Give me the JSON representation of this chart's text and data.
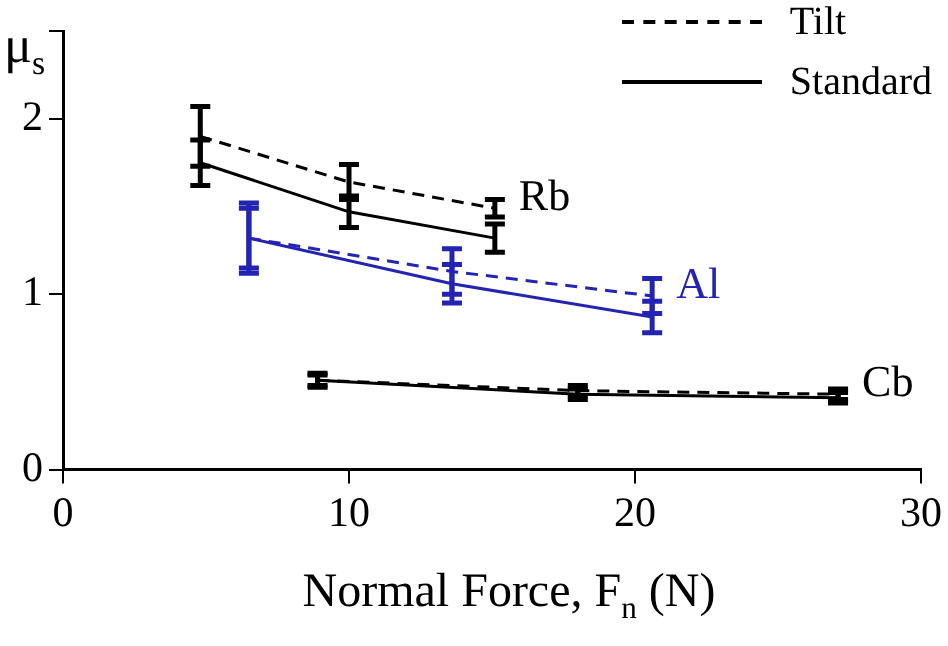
{
  "chart_data": {
    "type": "line",
    "xlabel": "Normal Force, F$_{n}$ (N)",
    "ylabel": "μ$_{s}$",
    "xlim": [
      0,
      30
    ],
    "xticks": [
      0,
      10,
      20,
      30
    ],
    "ylim": [
      0,
      2.5
    ],
    "yticks": [
      0,
      1,
      2,
      {
        "value": 2.5,
        "label": null
      }
    ],
    "grid": false,
    "legend": "top right",
    "series": [
      {
        "name": "Tilt",
        "color": "#000000",
        "line_style": "dashed",
        "x": [
          4.8,
          10,
          15.1
        ],
        "values": [
          1.9,
          1.64,
          1.49
        ],
        "errors": [
          0.17,
          0.1,
          0.05
        ]
      },
      {
        "name": "Standard",
        "color": "#000000",
        "line_style": "solid",
        "x": [
          4.8,
          10,
          15.1
        ],
        "values": [
          1.75,
          1.47,
          1.32
        ],
        "errors": [
          0.13,
          0.09,
          0.08
        ]
      },
      {
        "color": "#2323b4",
        "line_style": "dashed",
        "x": [
          6.5,
          13.6,
          20.6
        ],
        "values": [
          1.32,
          1.13,
          0.99
        ],
        "errors": [
          0.17,
          0.13,
          0.1
        ]
      },
      {
        "color": "#2323b4",
        "line_style": "solid",
        "x": [
          6.5,
          13.6,
          20.6
        ],
        "values": [
          1.32,
          1.06,
          0.87
        ],
        "errors": [
          0.2,
          0.11,
          0.09
        ]
      },
      {
        "color": "#000000",
        "line_style": "dashed",
        "x": [
          8.9,
          18,
          27.1
        ],
        "values": [
          0.51,
          0.45,
          0.43
        ],
        "errors": [
          0.03,
          0.03,
          0.03
        ]
      },
      {
        "color": "#000000",
        "line_style": "solid",
        "x": [
          8.9,
          18,
          27.1
        ],
        "values": [
          0.51,
          0.43,
          0.41
        ],
        "errors": [
          0.04,
          0.03,
          0.03
        ]
      }
    ],
    "annotations": [
      "Rb",
      "Al",
      "Cb"
    ]
  }
}
